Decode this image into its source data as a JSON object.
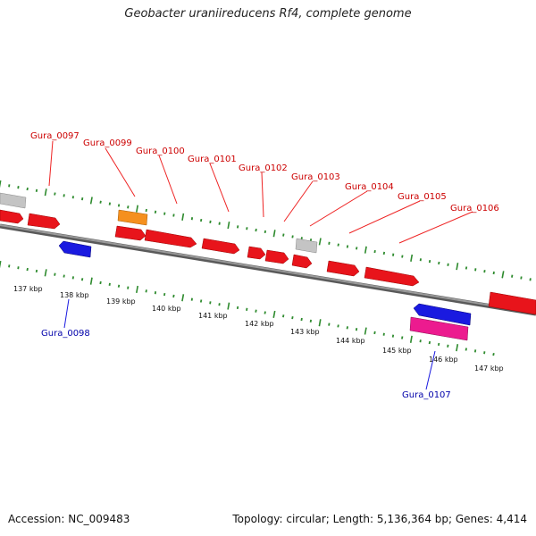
{
  "title": "Geobacter uraniireducens Rf4, complete genome",
  "footer": {
    "accession": "Accession: NC_009483",
    "summary": "Topology: circular; Length: 5,136,364 bp; Genes: 4,414"
  },
  "colors": {
    "backbone": "#7a7a7a",
    "ticks": "#2e8b2e",
    "gene_red": "#e8141b",
    "gene_orange": "#f5901e",
    "gene_grey": "#c4c4c4",
    "gene_blue": "#1a1ae0",
    "gene_magenta": "#ec1b8f",
    "label_top": "#cc0000",
    "label_bottom": "#0000aa"
  },
  "scale_labels": [
    "137 kbp",
    "138 kbp",
    "139 kbp",
    "140 kbp",
    "141 kbp",
    "142 kbp",
    "143 kbp",
    "144 kbp",
    "145 kbp",
    "146 kbp",
    "147 kbp"
  ],
  "gene_labels_top": [
    "Gura_0097",
    "Gura_0099",
    "Gura_0100",
    "Gura_0101",
    "Gura_0102",
    "Gura_0103",
    "Gura_0104",
    "Gura_0105",
    "Gura_0106"
  ],
  "gene_labels_bottom": [
    "Gura_0098",
    "Gura_0107"
  ]
}
